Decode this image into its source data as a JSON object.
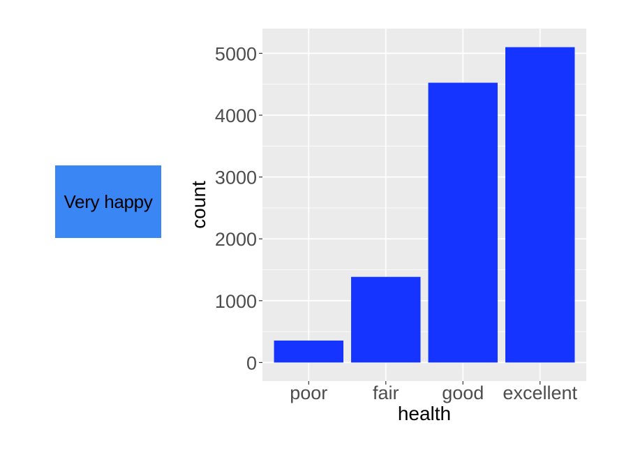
{
  "panel_label": "Very happy",
  "chart_data": {
    "type": "bar",
    "categories": [
      "poor",
      "fair",
      "good",
      "excellent"
    ],
    "values": [
      355,
      1385,
      4525,
      5100
    ],
    "xlabel": "health",
    "ylabel": "count",
    "ylim": [
      -300,
      5400
    ],
    "yticks": [
      0,
      1000,
      2000,
      3000,
      4000,
      5000
    ],
    "grid": true,
    "bar_color": "#1534ff",
    "panel_background": "#ebebeb",
    "grid_color": "#ffffff"
  }
}
